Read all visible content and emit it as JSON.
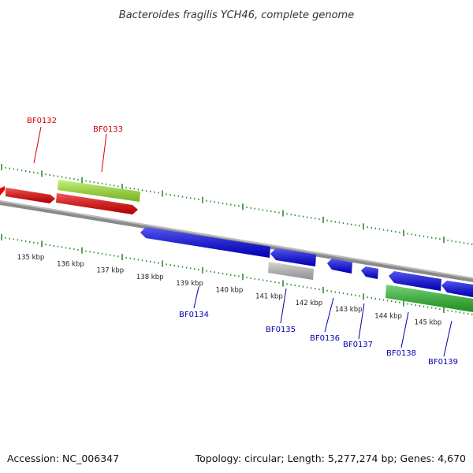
{
  "title": "Bacteroides fragilis YCH46, complete genome",
  "footer": {
    "accession": "Accession: NC_006347",
    "summary": "Topology: circular; Length: 5,277,274 bp; Genes: 4,670"
  },
  "colors": {
    "forward_label": "#cc0000",
    "reverse_label": "#0000aa",
    "tick": "#2e8b2e",
    "backbone": "#7a7a7a"
  },
  "kbp_labels": [
    "135 kbp",
    "136 kbp",
    "137 kbp",
    "138 kbp",
    "139 kbp",
    "140 kbp",
    "141 kbp",
    "142 kbp",
    "143 kbp",
    "144 kbp",
    "145 kbp"
  ],
  "genes": [
    {
      "id": "left-edge-gene",
      "label": "",
      "strand": "+",
      "color": "#ee0000"
    },
    {
      "id": "BF0132",
      "label": "BF0132",
      "strand": "+",
      "color": "#ee0000"
    },
    {
      "id": "BF0133",
      "label": "BF0133",
      "strand": "+",
      "color": "#ee0000"
    },
    {
      "id": "BF0133-hit",
      "label": "",
      "strand": "+",
      "color": "#99ee22"
    },
    {
      "id": "BF0134",
      "label": "BF0134",
      "strand": "-",
      "color": "#0000ee"
    },
    {
      "id": "BF0135",
      "label": "BF0135",
      "strand": "-",
      "color": "#0000ee"
    },
    {
      "id": "BF0135-hit",
      "label": "",
      "strand": "-",
      "color": "#bbbbbb"
    },
    {
      "id": "BF0136",
      "label": "BF0136",
      "strand": "-",
      "color": "#0000ee"
    },
    {
      "id": "BF0137",
      "label": "BF0137",
      "strand": "-",
      "color": "#0000ee"
    },
    {
      "id": "BF0138",
      "label": "BF0138",
      "strand": "-",
      "color": "#0000ee"
    },
    {
      "id": "BF0138-hit",
      "label": "",
      "strand": "-",
      "color": "#22bb22"
    },
    {
      "id": "BF0139",
      "label": "BF0139",
      "strand": "-",
      "color": "#0000ee"
    }
  ]
}
